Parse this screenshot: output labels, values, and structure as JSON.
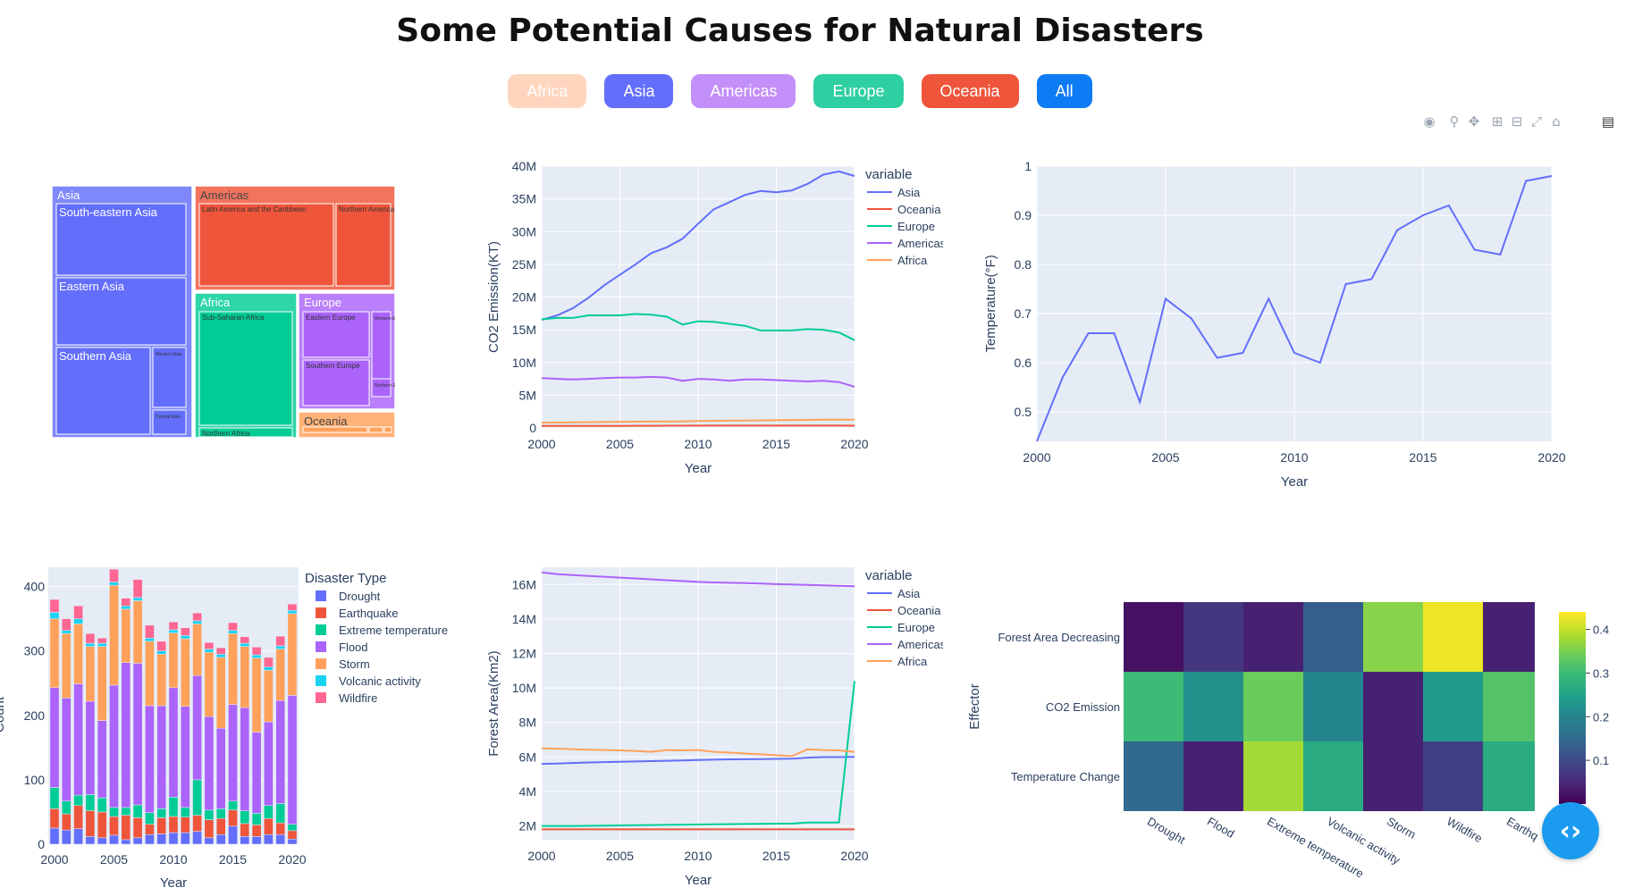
{
  "page": {
    "title": "Some Potential Causes for Natural Disasters",
    "buttons": [
      {
        "label": "Africa",
        "color": "#fdd6bd",
        "text_color": "#ffffff"
      },
      {
        "label": "Asia",
        "color": "#636efa",
        "text_color": "#ffffff"
      },
      {
        "label": "Americas",
        "color": "#c38ff8",
        "text_color": "#ffffff"
      },
      {
        "label": "Europe",
        "color": "#2ecfa0",
        "text_color": "#ffffff"
      },
      {
        "label": "Oceania",
        "color": "#ef553b",
        "text_color": "#ffffff"
      },
      {
        "label": "All",
        "color": "#0d7bf3",
        "text_color": "#ffffff"
      }
    ],
    "modebar_icons": [
      "camera-icon",
      "zoom-icon",
      "pan-icon",
      "zoom-in-icon",
      "zoom-out-icon",
      "autoscale-icon",
      "home-icon",
      "plotly-logo-icon"
    ],
    "fab_icon": "code-chevrons-icon"
  },
  "chart_data": [
    {
      "type": "treemap",
      "regions": [
        {
          "label": "Asia",
          "color": "#636efa",
          "children": [
            {
              "label": "South-eastern Asia"
            },
            {
              "label": "Eastern Asia"
            },
            {
              "label": "Southern Asia"
            },
            {
              "label": "Western Asia"
            },
            {
              "label": "Central Asia"
            }
          ]
        },
        {
          "label": "Americas",
          "color": "#ef553b",
          "children": [
            {
              "label": "Latin America and the Caribbean"
            },
            {
              "label": "Northern America"
            }
          ]
        },
        {
          "label": "Africa",
          "color": "#00cc96",
          "children": [
            {
              "label": "Sub-Saharan Africa"
            },
            {
              "label": "Northern Africa"
            }
          ]
        },
        {
          "label": "Europe",
          "color": "#ab63fa",
          "children": [
            {
              "label": "Eastern Europe"
            },
            {
              "label": "Western Europe"
            },
            {
              "label": "Southern Europe"
            },
            {
              "label": "Northern Europe"
            }
          ]
        },
        {
          "label": "Oceania",
          "color": "#ffa15a",
          "children": []
        }
      ]
    },
    {
      "type": "line",
      "xlabel": "Year",
      "ylabel": "CO2 Emission(KT)",
      "xlim": [
        2000,
        2020
      ],
      "ylim": [
        0,
        40000000
      ],
      "xticks": [
        "2000",
        "2005",
        "2010",
        "2015",
        "2020"
      ],
      "yticks": [
        "0",
        "5M",
        "10M",
        "15M",
        "20M",
        "25M",
        "30M",
        "35M",
        "40M"
      ],
      "legend_title": "variable",
      "x": [
        2000,
        2001,
        2002,
        2003,
        2004,
        2005,
        2006,
        2007,
        2008,
        2009,
        2010,
        2011,
        2012,
        2013,
        2014,
        2015,
        2016,
        2017,
        2018,
        2019,
        2020
      ],
      "series": [
        {
          "name": "Asia",
          "color": "#636efa",
          "values": [
            16500000,
            17200000,
            18300000,
            19900000,
            21800000,
            23400000,
            25000000,
            26700000,
            27600000,
            28900000,
            31200000,
            33400000,
            34500000,
            35600000,
            36200000,
            36000000,
            36300000,
            37300000,
            38700000,
            39200000,
            38500000
          ]
        },
        {
          "name": "Oceania",
          "color": "#ef553b",
          "values": [
            300000,
            300000,
            310000,
            310000,
            320000,
            320000,
            330000,
            330000,
            340000,
            340000,
            350000,
            350000,
            350000,
            350000,
            350000,
            350000,
            360000,
            360000,
            360000,
            360000,
            340000
          ]
        },
        {
          "name": "Europe",
          "color": "#00cc96",
          "values": [
            16600000,
            16800000,
            16800000,
            17200000,
            17200000,
            17200000,
            17400000,
            17300000,
            17000000,
            15800000,
            16300000,
            16200000,
            15900000,
            15600000,
            14900000,
            14900000,
            14900000,
            15100000,
            15000000,
            14600000,
            13400000
          ]
        },
        {
          "name": "Americas",
          "color": "#ab63fa",
          "values": [
            7600000,
            7500000,
            7400000,
            7500000,
            7600000,
            7700000,
            7700000,
            7800000,
            7700000,
            7200000,
            7500000,
            7400000,
            7200000,
            7400000,
            7400000,
            7300000,
            7200000,
            7100000,
            7200000,
            7000000,
            6300000
          ]
        },
        {
          "name": "Africa",
          "color": "#ffa15a",
          "values": [
            800000,
            820000,
            850000,
            880000,
            900000,
            920000,
            950000,
            970000,
            1000000,
            1000000,
            1050000,
            1080000,
            1100000,
            1130000,
            1150000,
            1170000,
            1200000,
            1220000,
            1250000,
            1260000,
            1250000
          ]
        }
      ]
    },
    {
      "type": "line",
      "xlabel": "Year",
      "ylabel": "Temperature(°F)",
      "xlim": [
        2000,
        2020
      ],
      "ylim": [
        0.44,
        1.0
      ],
      "xticks": [
        "2000",
        "2005",
        "2010",
        "2015",
        "2020"
      ],
      "yticks": [
        "0.5",
        "0.6",
        "0.7",
        "0.8",
        "0.9",
        "1"
      ],
      "x": [
        2000,
        2001,
        2002,
        2003,
        2004,
        2005,
        2006,
        2007,
        2008,
        2009,
        2010,
        2011,
        2012,
        2013,
        2014,
        2015,
        2016,
        2017,
        2018,
        2019,
        2020
      ],
      "series": [
        {
          "color": "#636efa",
          "values": [
            0.44,
            0.57,
            0.66,
            0.66,
            0.52,
            0.73,
            0.69,
            0.61,
            0.62,
            0.73,
            0.62,
            0.6,
            0.76,
            0.77,
            0.87,
            0.9,
            0.92,
            0.83,
            0.82,
            0.97,
            0.98
          ]
        }
      ]
    },
    {
      "type": "bar",
      "stacked": true,
      "xlabel": "Year",
      "ylabel": "Count",
      "xlim": [
        2000,
        2020
      ],
      "ylim": [
        0,
        400
      ],
      "xticks": [
        "2000",
        "2005",
        "2010",
        "2015",
        "2020"
      ],
      "yticks": [
        "0",
        "100",
        "200",
        "300",
        "400"
      ],
      "legend_title": "Disaster Type",
      "x": [
        2000,
        2001,
        2002,
        2003,
        2004,
        2005,
        2006,
        2007,
        2008,
        2009,
        2010,
        2011,
        2012,
        2013,
        2014,
        2015,
        2016,
        2017,
        2018,
        2019,
        2020
      ],
      "series": [
        {
          "name": "Drought",
          "color": "#636efa",
          "values": [
            25,
            22,
            24,
            12,
            10,
            14,
            7,
            10,
            15,
            16,
            18,
            18,
            20,
            10,
            15,
            28,
            12,
            12,
            15,
            15,
            8
          ]
        },
        {
          "name": "Earthquake",
          "color": "#ef553b",
          "values": [
            30,
            25,
            36,
            40,
            40,
            29,
            38,
            31,
            16,
            25,
            25,
            24,
            25,
            28,
            25,
            25,
            20,
            18,
            25,
            18,
            13
          ]
        },
        {
          "name": "Extreme temperature",
          "color": "#00cc96",
          "values": [
            33,
            20,
            16,
            25,
            22,
            14,
            12,
            20,
            18,
            14,
            30,
            15,
            55,
            15,
            15,
            14,
            20,
            18,
            20,
            30,
            10
          ]
        },
        {
          "name": "Flood",
          "color": "#ab63fa",
          "values": [
            155,
            160,
            173,
            145,
            120,
            190,
            225,
            220,
            166,
            160,
            170,
            157,
            162,
            145,
            125,
            150,
            160,
            126,
            130,
            160,
            200
          ]
        },
        {
          "name": "Storm",
          "color": "#ffa15a",
          "values": [
            107,
            100,
            93,
            85,
            115,
            155,
            83,
            97,
            100,
            80,
            85,
            105,
            80,
            100,
            110,
            110,
            95,
            115,
            80,
            80,
            127
          ]
        },
        {
          "name": "Volcanic activity",
          "color": "#19d3f3",
          "values": [
            10,
            5,
            8,
            5,
            5,
            5,
            5,
            5,
            5,
            5,
            5,
            5,
            5,
            5,
            5,
            5,
            5,
            5,
            5,
            5,
            5
          ]
        },
        {
          "name": "Wildfire",
          "color": "#ff6692",
          "values": [
            20,
            18,
            20,
            15,
            8,
            20,
            12,
            28,
            20,
            15,
            12,
            12,
            12,
            10,
            10,
            12,
            10,
            12,
            15,
            15,
            10
          ]
        }
      ]
    },
    {
      "type": "line",
      "xlabel": "Year",
      "ylabel": "Forest Area(Km2)",
      "xlim": [
        2000,
        2020
      ],
      "ylim": [
        1200000,
        17000000
      ],
      "xticks": [
        "2000",
        "2005",
        "2010",
        "2015",
        "2020"
      ],
      "yticks": [
        "2M",
        "4M",
        "6M",
        "8M",
        "10M",
        "12M",
        "14M",
        "16M"
      ],
      "legend_title": "variable",
      "x": [
        2000,
        2001,
        2002,
        2003,
        2004,
        2005,
        2006,
        2007,
        2008,
        2009,
        2010,
        2011,
        2012,
        2013,
        2014,
        2015,
        2016,
        2017,
        2018,
        2019,
        2020
      ],
      "series": [
        {
          "name": "Asia",
          "color": "#636efa",
          "values": [
            5600000,
            5620000,
            5650000,
            5680000,
            5700000,
            5720000,
            5740000,
            5760000,
            5780000,
            5800000,
            5820000,
            5840000,
            5860000,
            5870000,
            5880000,
            5890000,
            5900000,
            5960000,
            5990000,
            5990000,
            6000000
          ]
        },
        {
          "name": "Oceania",
          "color": "#ef553b",
          "values": [
            1800000,
            1800000,
            1800000,
            1800000,
            1800000,
            1800000,
            1800000,
            1800000,
            1800000,
            1800000,
            1800000,
            1800000,
            1800000,
            1800000,
            1800000,
            1800000,
            1800000,
            1800000,
            1800000,
            1800000,
            1800000
          ]
        },
        {
          "name": "Europe",
          "color": "#00cc96",
          "values": [
            2000000,
            2000000,
            2000000,
            2010000,
            2020000,
            2030000,
            2040000,
            2050000,
            2060000,
            2070000,
            2080000,
            2090000,
            2100000,
            2110000,
            2120000,
            2130000,
            2140000,
            2200000,
            2200000,
            2200000,
            10400000
          ]
        },
        {
          "name": "Americas",
          "color": "#ab63fa",
          "values": [
            16700000,
            16600000,
            16550000,
            16500000,
            16450000,
            16400000,
            16350000,
            16300000,
            16250000,
            16200000,
            16150000,
            16120000,
            16100000,
            16080000,
            16050000,
            16020000,
            16000000,
            15980000,
            15950000,
            15920000,
            15900000
          ]
        },
        {
          "name": "Africa",
          "color": "#ffa15a",
          "values": [
            6500000,
            6480000,
            6450000,
            6420000,
            6400000,
            6380000,
            6350000,
            6300000,
            6400000,
            6380000,
            6400000,
            6300000,
            6250000,
            6200000,
            6150000,
            6100000,
            6050000,
            6450000,
            6400000,
            6380000,
            6300000
          ]
        }
      ]
    },
    {
      "type": "heatmap",
      "ylabel": "Effector",
      "rows": [
        "Forest Area Decreasing",
        "CO2 Emission",
        "Temperature Change"
      ],
      "columns": [
        "Drought",
        "Flood",
        "Extreme temperature",
        "Volcanic activity",
        "Storm",
        "Wildfire",
        "Earthquake"
      ],
      "column_tick_labels": [
        "Drought",
        "Flood",
        "Extreme temperature",
        "Volcanic activity",
        "Storm",
        "Wildfire",
        "Earthq"
      ],
      "values": [
        [
          0.02,
          0.07,
          0.04,
          0.13,
          0.36,
          0.43,
          0.04
        ],
        [
          0.3,
          0.22,
          0.34,
          0.2,
          0.04,
          0.24,
          0.32
        ],
        [
          0.15,
          0.04,
          0.38,
          0.27,
          0.04,
          0.08,
          0.27
        ]
      ],
      "zlim": [
        0,
        0.44
      ],
      "colorbar_ticks": [
        "0.1",
        "0.2",
        "0.3",
        "0.4"
      ],
      "colorscale": "viridis"
    }
  ]
}
